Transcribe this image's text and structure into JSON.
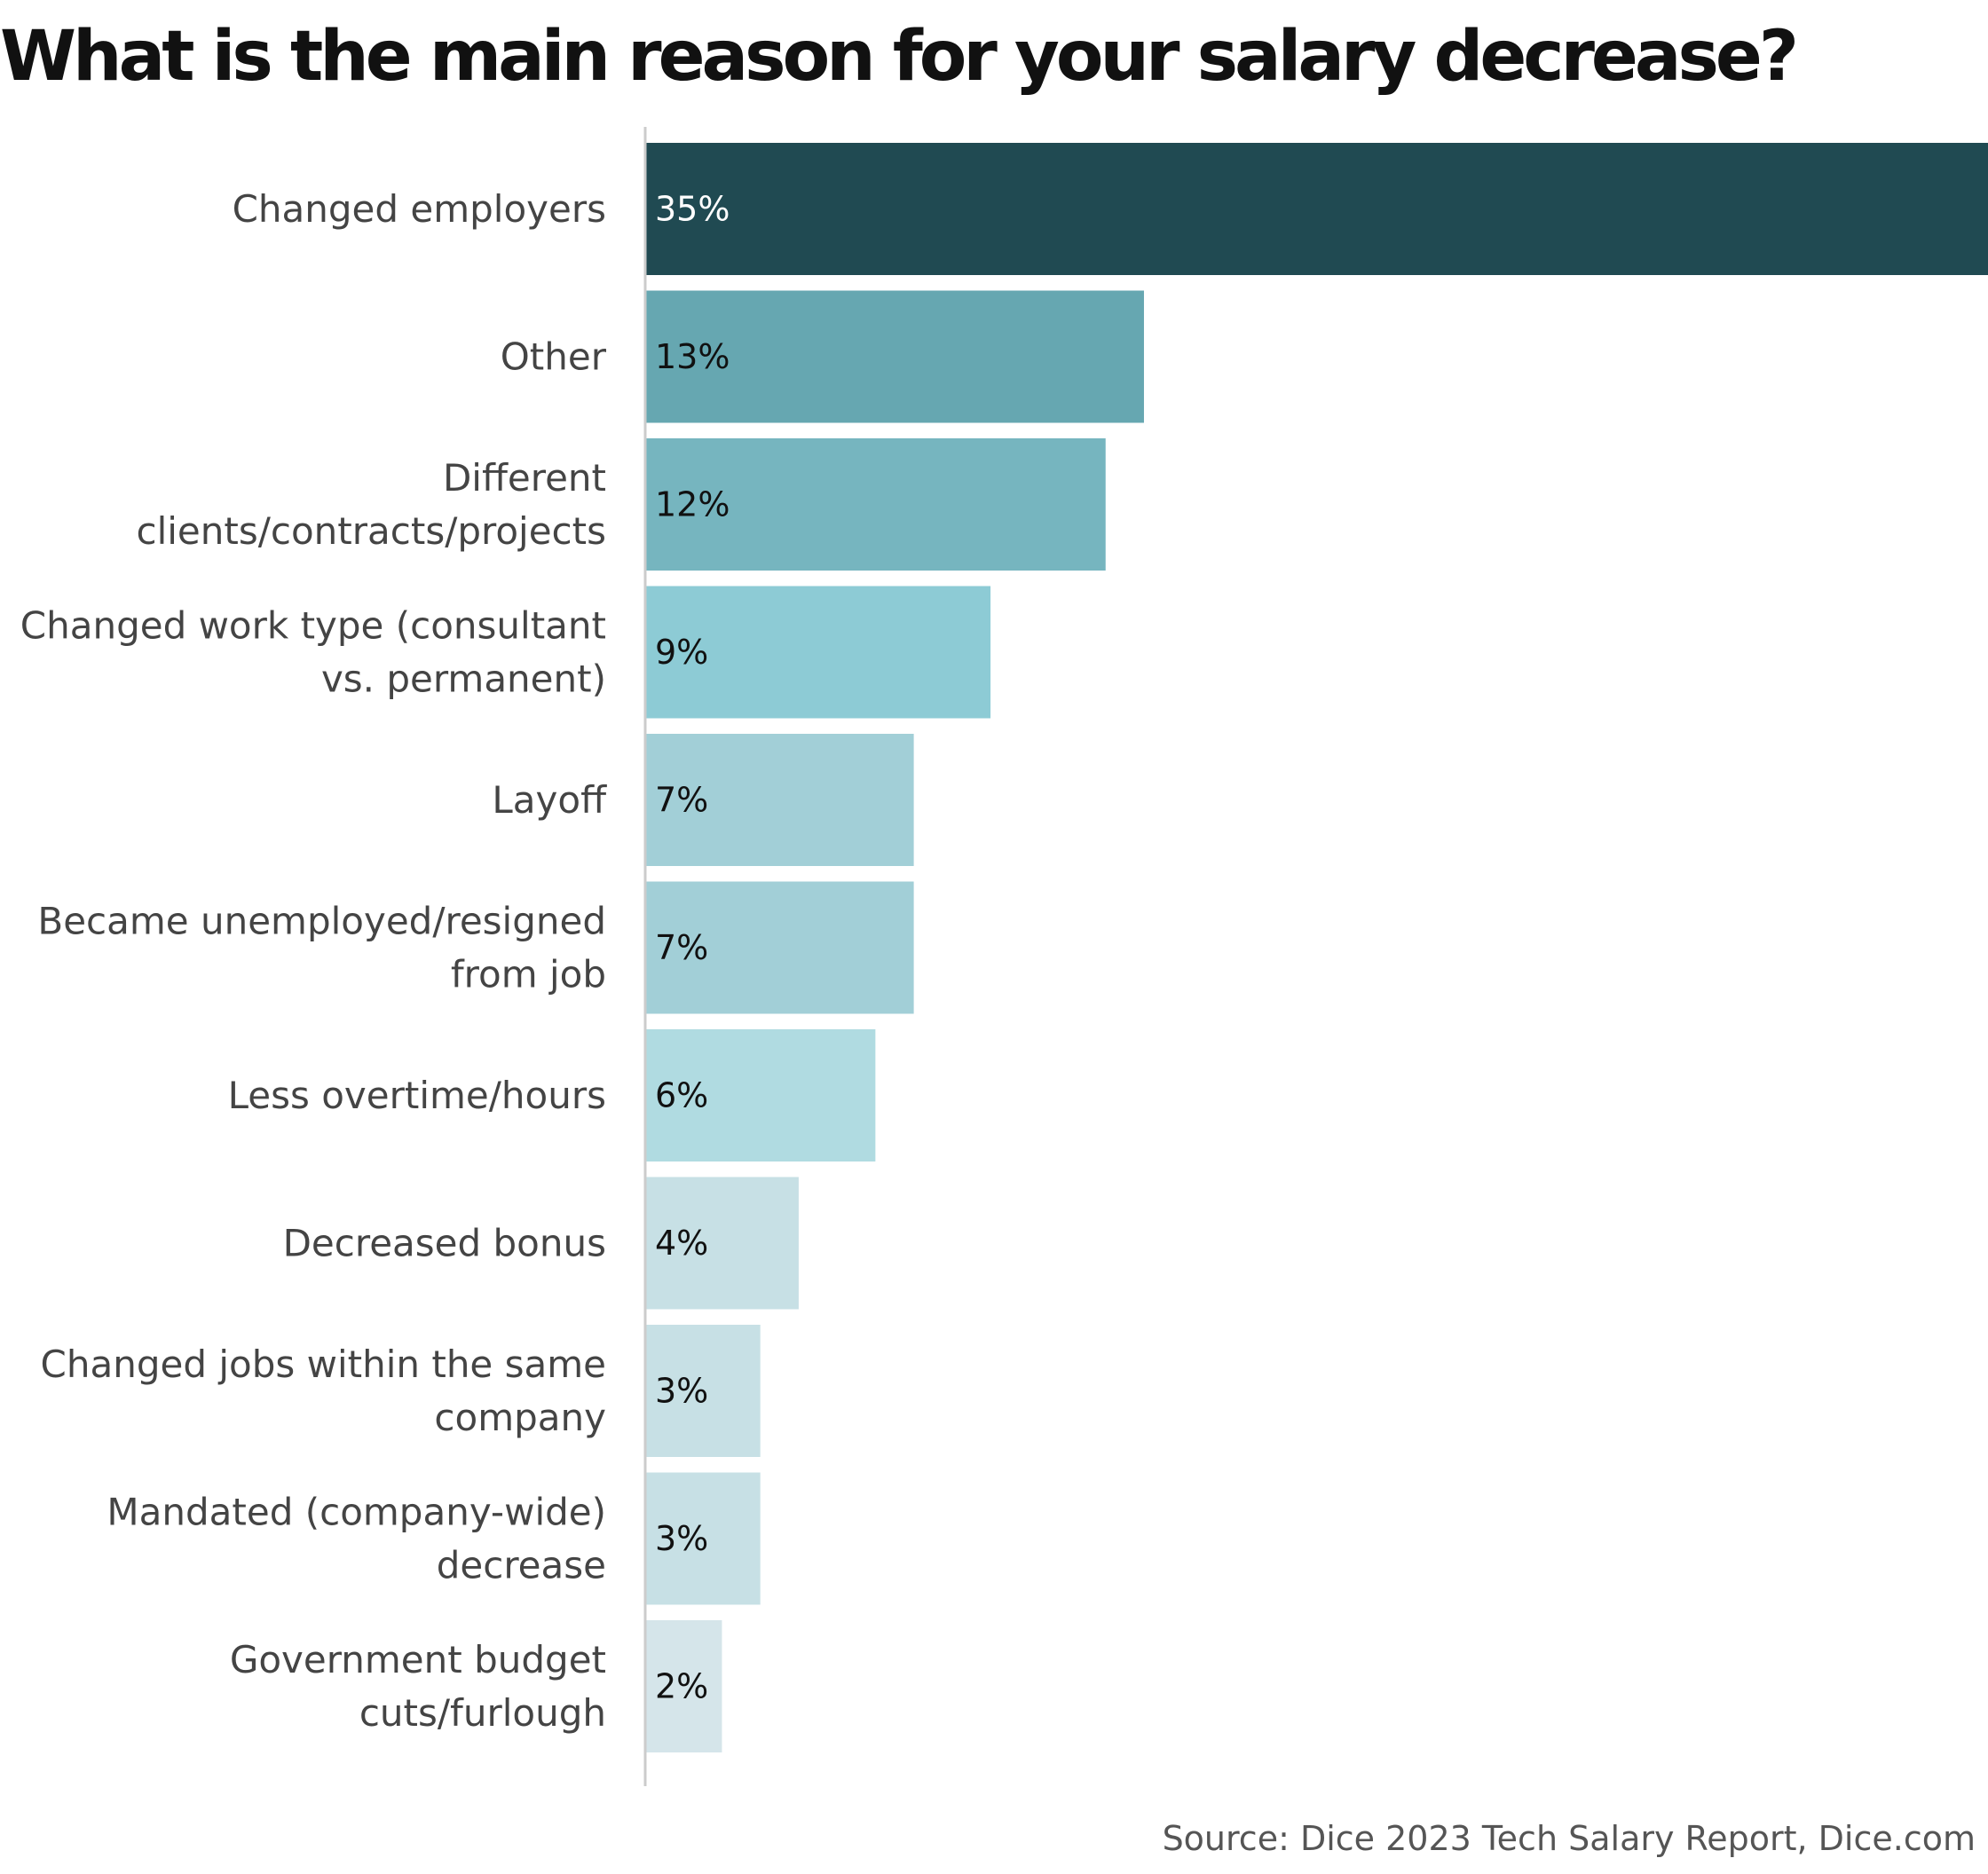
{
  "title": "What is the main reason for your salary decrease?",
  "source": "Source: Dice 2023 Tech Salary Report, Dice.com",
  "chart_data": {
    "type": "bar",
    "orientation": "horizontal",
    "title": "What is the main reason for your salary decrease?",
    "categories": [
      [
        "Changed employers"
      ],
      [
        "Other"
      ],
      [
        "Different",
        "clients/contracts/projects"
      ],
      [
        "Changed work type (consultant",
        "vs. permanent)"
      ],
      [
        "Layoff"
      ],
      [
        "Became unemployed/resigned",
        "from job"
      ],
      [
        "Less overtime/hours"
      ],
      [
        "Decreased bonus"
      ],
      [
        "Changed jobs within the same",
        "company"
      ],
      [
        "Mandated (company-wide)",
        "decrease"
      ],
      [
        "Government budget",
        "cuts/furlough"
      ]
    ],
    "values": [
      35,
      13,
      12,
      9,
      7,
      7,
      6,
      4,
      3,
      3,
      2
    ],
    "value_labels": [
      "35%",
      "13%",
      "12%",
      "9%",
      "7%",
      "7%",
      "6%",
      "4%",
      "3%",
      "3%",
      "2%"
    ],
    "unit": "%",
    "xlim": [
      0,
      35
    ],
    "grid": false,
    "legend": "none",
    "colors": [
      "#204a52",
      "#66a7b1",
      "#76b5bf",
      "#8dcbd5",
      "#a2cfd7",
      "#a2cfd7",
      "#b0dbe1",
      "#c7e0e5",
      "#c7e0e5",
      "#c7e0e5",
      "#d5e5ea"
    ],
    "label_colors": [
      "#ffffff",
      "#111111",
      "#111111",
      "#111111",
      "#111111",
      "#111111",
      "#111111",
      "#111111",
      "#111111",
      "#111111",
      "#111111"
    ],
    "category_label_color": "#444444",
    "axis_color": "#cccccc"
  }
}
